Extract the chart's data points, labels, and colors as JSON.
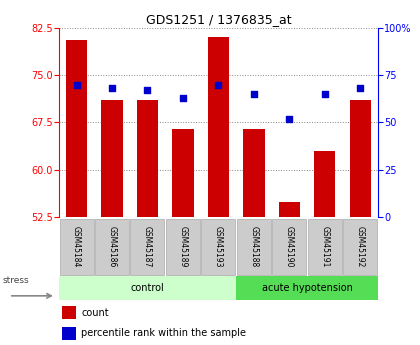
{
  "title": "GDS1251 / 1376835_at",
  "samples": [
    "GSM45184",
    "GSM45186",
    "GSM45187",
    "GSM45189",
    "GSM45193",
    "GSM45188",
    "GSM45190",
    "GSM45191",
    "GSM45192"
  ],
  "counts": [
    80.5,
    71.0,
    71.0,
    66.5,
    81.0,
    66.5,
    55.0,
    63.0,
    71.0
  ],
  "percentiles": [
    70,
    68,
    67,
    63,
    70,
    65,
    52,
    65,
    68
  ],
  "ylim_left": [
    52.5,
    82.5
  ],
  "ylim_right": [
    0,
    100
  ],
  "yticks_left": [
    52.5,
    60.0,
    67.5,
    75.0,
    82.5
  ],
  "yticks_right": [
    0,
    25,
    50,
    75,
    100
  ],
  "bar_color": "#cc0000",
  "dot_color": "#0000cc",
  "label_bg": "#cccccc",
  "group_label_bg_control": "#ccffcc",
  "group_label_bg_acute": "#55dd55",
  "legend_count_label": "count",
  "legend_pct_label": "percentile rank within the sample",
  "stress_label": "stress",
  "dotted_grid_color": "#888888",
  "bar_width": 0.6,
  "control_count": 5,
  "acute_count": 4
}
